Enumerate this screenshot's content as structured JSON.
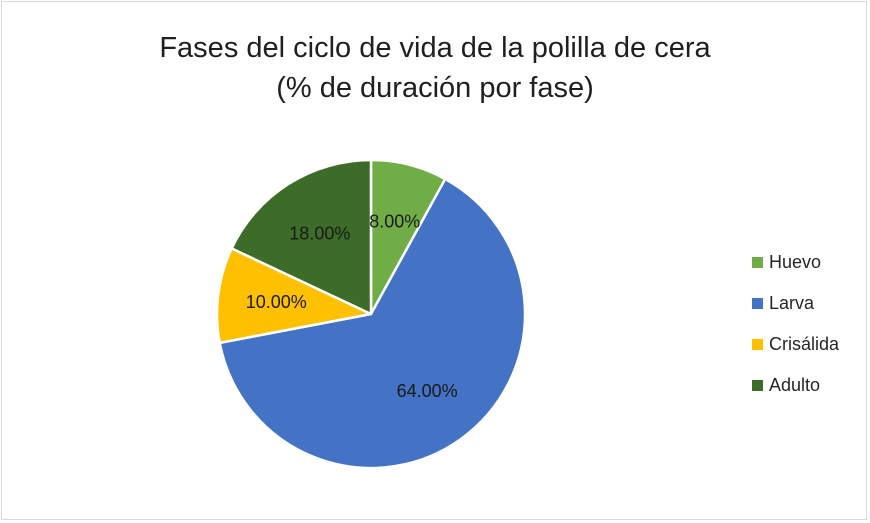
{
  "chart_data": {
    "type": "pie",
    "title_lines": [
      "Fases del ciclo de vida de la polilla de cera",
      "(% de duración por fase)"
    ],
    "slices": [
      {
        "name": "Huevo",
        "value": 8.0,
        "label": "8.00%",
        "color": "#70ad47"
      },
      {
        "name": "Larva",
        "value": 64.0,
        "label": "64.00%",
        "color": "#4472c4"
      },
      {
        "name": "Crisálida",
        "value": 10.0,
        "label": "10.00%",
        "color": "#ffc000"
      },
      {
        "name": "Adulto",
        "value": 18.0,
        "label": "18.00%",
        "color": "#3d6b28"
      }
    ],
    "legend_position": "right",
    "start_angle": "12 o'clock, clockwise"
  }
}
